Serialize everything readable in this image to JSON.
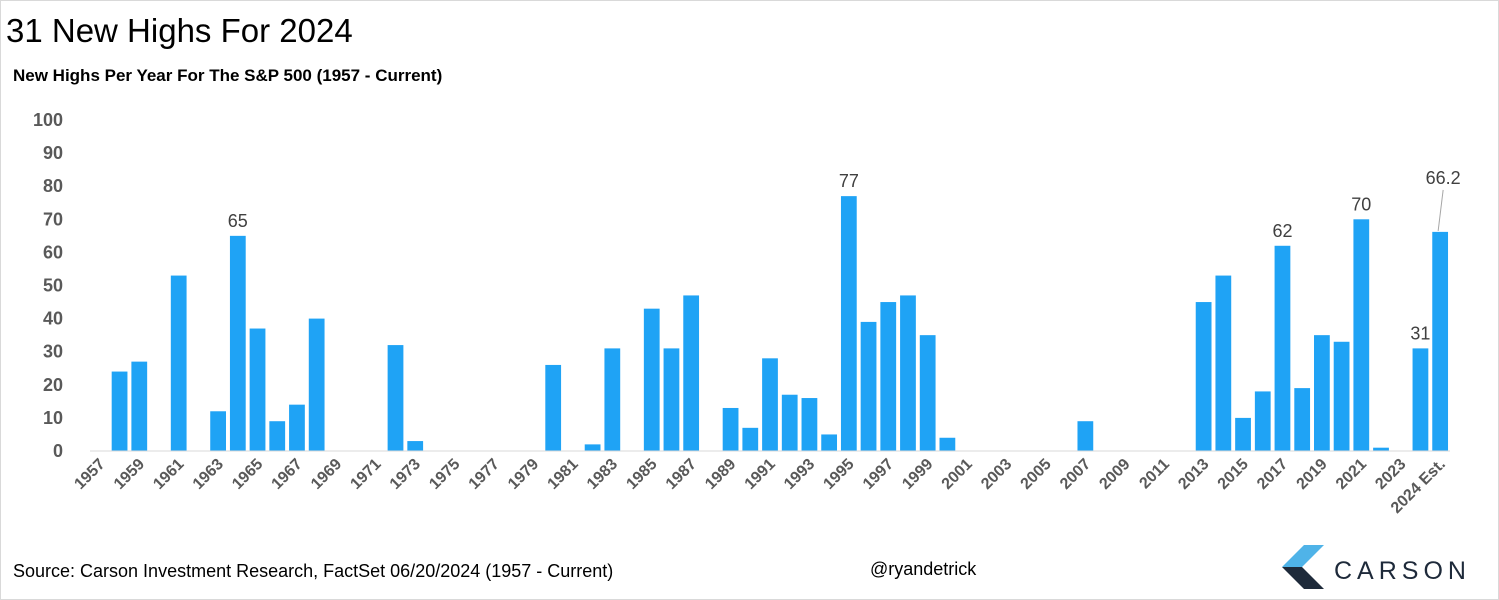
{
  "title": "31 New Highs For 2024",
  "footer": {
    "source": "Source: Carson Investment Research, FactSet 06/20/2024 (1957 - Current)",
    "handle": "@ryandetrick"
  },
  "logo": {
    "text": "CARSON",
    "icon": "carson-chevron-icon",
    "colors": {
      "light": "#4fb3e8",
      "dark": "#1e2a3a"
    }
  },
  "chart_data": {
    "type": "bar",
    "title": "New Highs Per Year For The S&P 500 (1957 - Current)",
    "xlabel": "",
    "ylabel": "",
    "ylim": [
      0,
      100
    ],
    "yticks": [
      0,
      10,
      20,
      30,
      40,
      50,
      60,
      70,
      80,
      90,
      100
    ],
    "grid": false,
    "legend": "none",
    "bar_color": "#1fa3f5",
    "categories": [
      "1957",
      "1958",
      "1959",
      "1960",
      "1961",
      "1962",
      "1963",
      "1964",
      "1965",
      "1966",
      "1967",
      "1968",
      "1969",
      "1970",
      "1971",
      "1972",
      "1973",
      "1974",
      "1975",
      "1976",
      "1977",
      "1978",
      "1979",
      "1980",
      "1981",
      "1982",
      "1983",
      "1984",
      "1985",
      "1986",
      "1987",
      "1988",
      "1989",
      "1990",
      "1991",
      "1992",
      "1993",
      "1994",
      "1995",
      "1996",
      "1997",
      "1998",
      "1999",
      "2000",
      "2001",
      "2002",
      "2003",
      "2004",
      "2005",
      "2006",
      "2007",
      "2008",
      "2009",
      "2010",
      "2011",
      "2012",
      "2013",
      "2014",
      "2015",
      "2016",
      "2017",
      "2018",
      "2019",
      "2020",
      "2021",
      "2022",
      "2023",
      "2024",
      "2024 Est."
    ],
    "tick_labels": [
      "1957",
      "1959",
      "1961",
      "1963",
      "1965",
      "1967",
      "1969",
      "1971",
      "1973",
      "1975",
      "1977",
      "1979",
      "1981",
      "1983",
      "1985",
      "1987",
      "1989",
      "1991",
      "1993",
      "1995",
      "1997",
      "1999",
      "2001",
      "2003",
      "2005",
      "2007",
      "2009",
      "2011",
      "2013",
      "2015",
      "2017",
      "2019",
      "2021",
      "2023",
      "2024 Est."
    ],
    "values": [
      0,
      24,
      27,
      0,
      53,
      0,
      12,
      65,
      37,
      9,
      14,
      40,
      0,
      0,
      0,
      32,
      3,
      0,
      0,
      0,
      0,
      0,
      0,
      26,
      0,
      2,
      31,
      0,
      43,
      31,
      47,
      0,
      13,
      7,
      28,
      17,
      16,
      5,
      77,
      39,
      45,
      47,
      35,
      4,
      0,
      0,
      0,
      0,
      0,
      0,
      9,
      0,
      0,
      0,
      0,
      0,
      45,
      53,
      10,
      18,
      62,
      19,
      35,
      33,
      70,
      1,
      0,
      31,
      66.2
    ],
    "data_labels": [
      {
        "category": "1964",
        "text": "65"
      },
      {
        "category": "1995",
        "text": "77"
      },
      {
        "category": "2017",
        "text": "62"
      },
      {
        "category": "2021",
        "text": "70"
      },
      {
        "category": "2024",
        "text": "31"
      },
      {
        "category": "2024 Est.",
        "text": "66.2"
      }
    ]
  }
}
